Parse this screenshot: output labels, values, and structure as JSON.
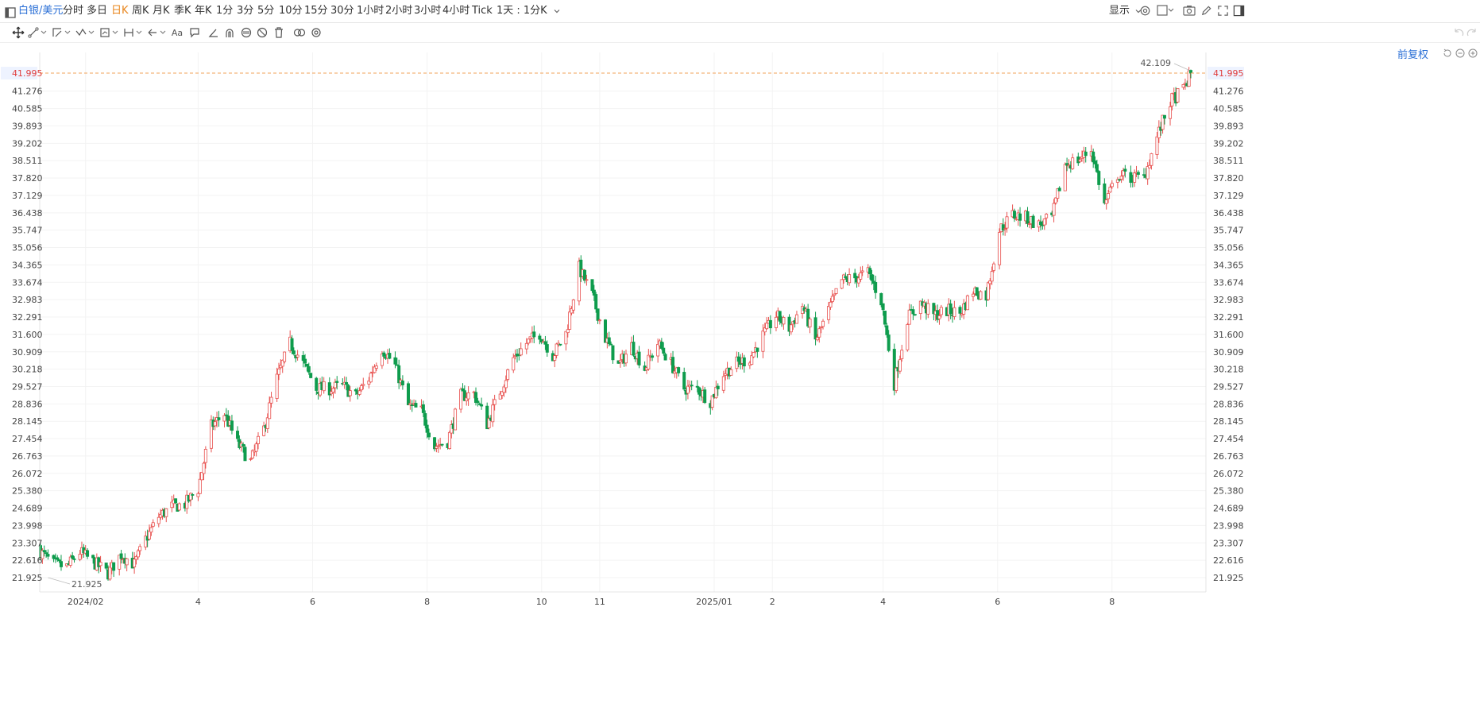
{
  "symbol": "白银/美元",
  "periods": [
    {
      "label": "分时",
      "active": false
    },
    {
      "label": "多日",
      "active": false
    },
    {
      "label": "日K",
      "active": true
    },
    {
      "label": "周K",
      "active": false
    },
    {
      "label": "月K",
      "active": false
    },
    {
      "label": "季K",
      "active": false
    },
    {
      "label": "年K",
      "active": false
    },
    {
      "label": "1分",
      "active": false
    },
    {
      "label": "3分",
      "active": false
    },
    {
      "label": "5分",
      "active": false
    },
    {
      "label": "10分",
      "active": false
    },
    {
      "label": "15分",
      "active": false
    },
    {
      "label": "30分",
      "active": false
    },
    {
      "label": "1小时",
      "active": false
    },
    {
      "label": "2小时",
      "active": false
    },
    {
      "label": "3小时",
      "active": false
    },
    {
      "label": "4小时",
      "active": false
    },
    {
      "label": "Tick",
      "active": false
    }
  ],
  "custom_period": "1天 : 1分K",
  "display_label": "显示",
  "adjust_label": "前复权",
  "colors": {
    "up": "#e8514f",
    "down": "#0e9c4d",
    "accent": "#2a6fd6",
    "active": "#e8841a",
    "current_line": "#f2a35a",
    "price_text": "#e03c3c"
  },
  "chart_data": {
    "type": "candlestick",
    "title": "",
    "x_tick_labels": [
      "2024/02",
      "4",
      "6",
      "8",
      "10",
      "11",
      "2025/01",
      "2",
      "4",
      "6",
      "8"
    ],
    "y_tick_labels": [
      "41.995",
      "41.276",
      "40.585",
      "39.893",
      "39.202",
      "38.511",
      "37.820",
      "37.129",
      "36.438",
      "35.747",
      "35.056",
      "34.365",
      "33.674",
      "32.983",
      "32.291",
      "31.600",
      "30.909",
      "30.218",
      "29.527",
      "28.836",
      "28.145",
      "27.454",
      "26.763",
      "26.072",
      "25.380",
      "24.689",
      "23.998",
      "23.307",
      "22.616",
      "21.925"
    ],
    "ylim": [
      21.6,
      42.6
    ],
    "current_price": "41.995",
    "max_label": "42.109",
    "min_label": "21.925",
    "series_anchors": [
      [
        "2024-01-08",
        22.95
      ],
      [
        "2024-01-15",
        22.45
      ],
      [
        "2024-01-22",
        22.35
      ],
      [
        "2024-01-29",
        22.95
      ],
      [
        "2024-02-05",
        22.55
      ],
      [
        "2024-02-13",
        22.1
      ],
      [
        "2024-02-20",
        22.85
      ],
      [
        "2024-02-27",
        22.45
      ],
      [
        "2024-03-04",
        23.45
      ],
      [
        "2024-03-11",
        24.35
      ],
      [
        "2024-03-18",
        24.75
      ],
      [
        "2024-03-25",
        24.85
      ],
      [
        "2024-04-01",
        25.45
      ],
      [
        "2024-04-08",
        27.95
      ],
      [
        "2024-04-15",
        28.45
      ],
      [
        "2024-04-22",
        27.25
      ],
      [
        "2024-04-29",
        26.55
      ],
      [
        "2024-05-06",
        27.85
      ],
      [
        "2024-05-13",
        29.85
      ],
      [
        "2024-05-20",
        31.25
      ],
      [
        "2024-05-27",
        30.45
      ],
      [
        "2024-06-03",
        29.45
      ],
      [
        "2024-06-10",
        29.45
      ],
      [
        "2024-06-17",
        29.55
      ],
      [
        "2024-06-24",
        29.15
      ],
      [
        "2024-07-01",
        29.85
      ],
      [
        "2024-07-08",
        31.05
      ],
      [
        "2024-07-15",
        30.35
      ],
      [
        "2024-07-22",
        28.75
      ],
      [
        "2024-07-29",
        28.55
      ],
      [
        "2024-08-05",
        27.15
      ],
      [
        "2024-08-12",
        27.35
      ],
      [
        "2024-08-19",
        29.15
      ],
      [
        "2024-08-26",
        29.25
      ],
      [
        "2024-09-02",
        28.05
      ],
      [
        "2024-09-09",
        29.35
      ],
      [
        "2024-09-16",
        30.65
      ],
      [
        "2024-09-23",
        31.25
      ],
      [
        "2024-09-30",
        31.65
      ],
      [
        "2024-10-07",
        30.75
      ],
      [
        "2024-10-14",
        31.65
      ],
      [
        "2024-10-21",
        34.25
      ],
      [
        "2024-10-28",
        33.15
      ],
      [
        "2024-11-04",
        31.45
      ],
      [
        "2024-11-11",
        30.35
      ],
      [
        "2024-11-18",
        31.15
      ],
      [
        "2024-11-25",
        30.25
      ],
      [
        "2024-12-02",
        31.25
      ],
      [
        "2024-12-09",
        30.45
      ],
      [
        "2024-12-16",
        29.45
      ],
      [
        "2024-12-23",
        29.45
      ],
      [
        "2024-12-30",
        28.95
      ],
      [
        "2025-01-06",
        30.05
      ],
      [
        "2025-01-13",
        30.45
      ],
      [
        "2025-01-20",
        30.65
      ],
      [
        "2025-01-27",
        31.55
      ],
      [
        "2025-02-03",
        32.35
      ],
      [
        "2025-02-10",
        31.85
      ],
      [
        "2025-02-17",
        32.75
      ],
      [
        "2025-02-24",
        31.35
      ],
      [
        "2025-03-03",
        32.55
      ],
      [
        "2025-03-10",
        33.75
      ],
      [
        "2025-03-17",
        33.85
      ],
      [
        "2025-03-24",
        34.05
      ],
      [
        "2025-03-31",
        32.95
      ],
      [
        "2025-04-07",
        29.65
      ],
      [
        "2025-04-14",
        32.25
      ],
      [
        "2025-04-21",
        32.85
      ],
      [
        "2025-04-28",
        32.35
      ],
      [
        "2025-05-05",
        32.55
      ],
      [
        "2025-05-12",
        32.45
      ],
      [
        "2025-05-19",
        33.35
      ],
      [
        "2025-05-26",
        33.15
      ],
      [
        "2025-06-02",
        35.75
      ],
      [
        "2025-06-09",
        36.35
      ],
      [
        "2025-06-16",
        36.25
      ],
      [
        "2025-06-23",
        35.95
      ],
      [
        "2025-06-30",
        36.25
      ],
      [
        "2025-07-07",
        38.35
      ],
      [
        "2025-07-14",
        38.55
      ],
      [
        "2025-07-21",
        38.95
      ],
      [
        "2025-07-28",
        36.75
      ],
      [
        "2025-08-04",
        37.95
      ],
      [
        "2025-08-11",
        37.85
      ],
      [
        "2025-08-18",
        37.85
      ],
      [
        "2025-08-25",
        39.45
      ],
      [
        "2025-09-01",
        40.85
      ],
      [
        "2025-09-08",
        41.35
      ],
      [
        "2025-09-12",
        41.99
      ]
    ]
  }
}
